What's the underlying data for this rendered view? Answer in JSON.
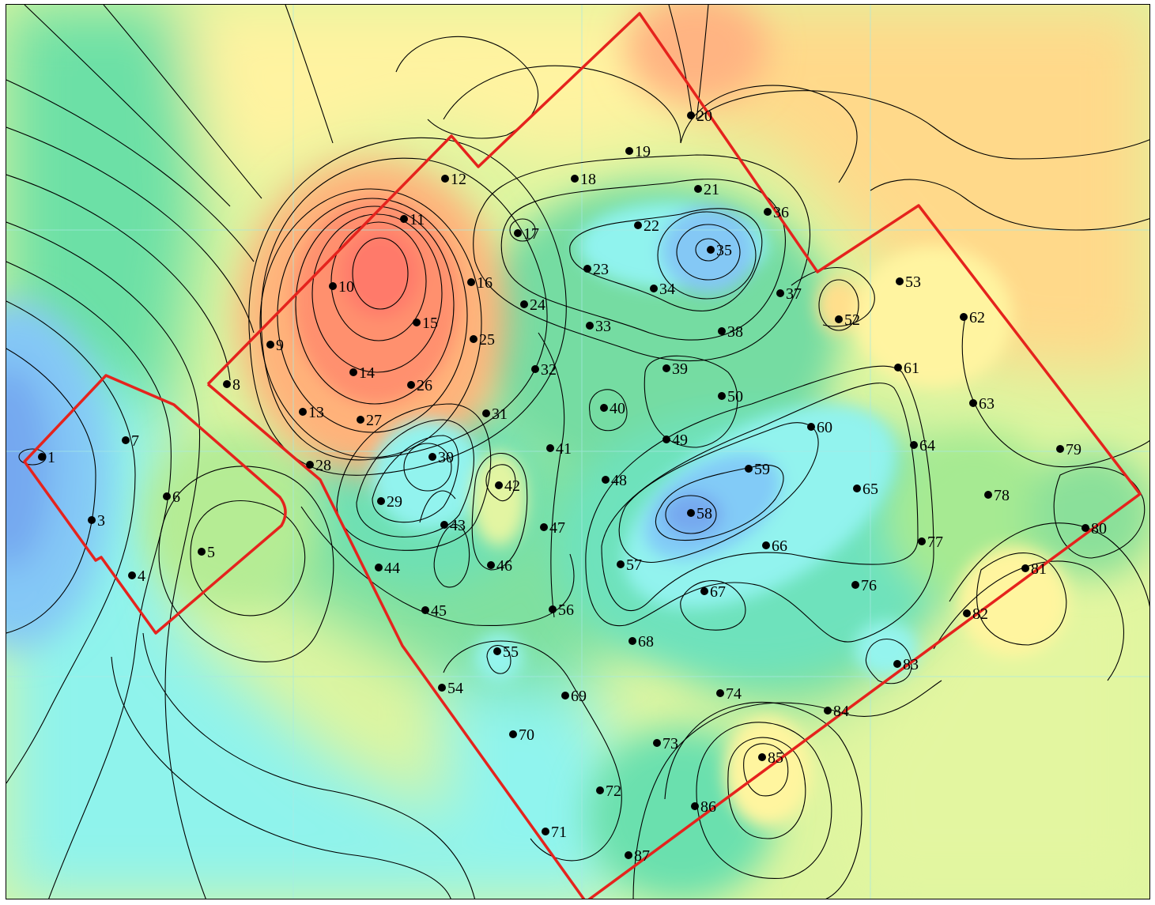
{
  "map": {
    "colors": {
      "deep_blue": "#74a8f0",
      "blue": "#8ccff7",
      "cyan": "#94f7f0",
      "aqua_green": "#6ce6c0",
      "green": "#5cdc92",
      "light_green": "#88e08c",
      "yellow_green": "#b7ee92",
      "pale_yellow": "#ddf5a0",
      "yellow": "#fff7a2",
      "light_orange": "#ffe08c",
      "orange": "#ffc882",
      "red_orange": "#ff9d72",
      "red": "#ff7d6e",
      "boundary": "#e5231d",
      "well_dot": "#000000"
    },
    "wells": [
      {
        "id": "1"
      },
      {
        "id": "3"
      },
      {
        "id": "4"
      },
      {
        "id": "5"
      },
      {
        "id": "6"
      },
      {
        "id": "7"
      },
      {
        "id": "8"
      },
      {
        "id": "9"
      },
      {
        "id": "10"
      },
      {
        "id": "11"
      },
      {
        "id": "12"
      },
      {
        "id": "13"
      },
      {
        "id": "14"
      },
      {
        "id": "15"
      },
      {
        "id": "16"
      },
      {
        "id": "17"
      },
      {
        "id": "18"
      },
      {
        "id": "19"
      },
      {
        "id": "20"
      },
      {
        "id": "21"
      },
      {
        "id": "22"
      },
      {
        "id": "23"
      },
      {
        "id": "24"
      },
      {
        "id": "25"
      },
      {
        "id": "26"
      },
      {
        "id": "27"
      },
      {
        "id": "28"
      },
      {
        "id": "29"
      },
      {
        "id": "30"
      },
      {
        "id": "31"
      },
      {
        "id": "32"
      },
      {
        "id": "33"
      },
      {
        "id": "34"
      },
      {
        "id": "35"
      },
      {
        "id": "36"
      },
      {
        "id": "37"
      },
      {
        "id": "38"
      },
      {
        "id": "39"
      },
      {
        "id": "40"
      },
      {
        "id": "41"
      },
      {
        "id": "42"
      },
      {
        "id": "43"
      },
      {
        "id": "44"
      },
      {
        "id": "45"
      },
      {
        "id": "46"
      },
      {
        "id": "47"
      },
      {
        "id": "48"
      },
      {
        "id": "49"
      },
      {
        "id": "50"
      },
      {
        "id": "52"
      },
      {
        "id": "53"
      },
      {
        "id": "54"
      },
      {
        "id": "55"
      },
      {
        "id": "56"
      },
      {
        "id": "57"
      },
      {
        "id": "58"
      },
      {
        "id": "59"
      },
      {
        "id": "60"
      },
      {
        "id": "61"
      },
      {
        "id": "62"
      },
      {
        "id": "63"
      },
      {
        "id": "64"
      },
      {
        "id": "65"
      },
      {
        "id": "66"
      },
      {
        "id": "67"
      },
      {
        "id": "68"
      },
      {
        "id": "69"
      },
      {
        "id": "70"
      },
      {
        "id": "71"
      },
      {
        "id": "72"
      },
      {
        "id": "73"
      },
      {
        "id": "74"
      },
      {
        "id": "76"
      },
      {
        "id": "77"
      },
      {
        "id": "78"
      },
      {
        "id": "79"
      },
      {
        "id": "80"
      },
      {
        "id": "81"
      },
      {
        "id": "82"
      },
      {
        "id": "83"
      },
      {
        "id": "84"
      },
      {
        "id": "85"
      },
      {
        "id": "86"
      },
      {
        "id": "87"
      }
    ]
  }
}
